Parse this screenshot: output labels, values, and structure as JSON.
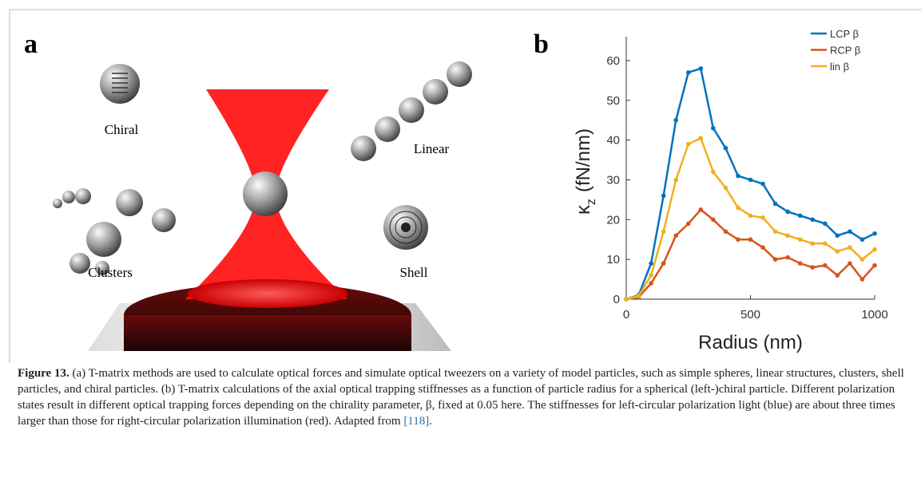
{
  "panels": {
    "a": {
      "label": "a",
      "items": [
        "Chiral",
        "Linear",
        "Clusters",
        "Shell"
      ]
    },
    "b": {
      "label": "b"
    }
  },
  "chart_data": {
    "type": "line",
    "ylabel": {
      "symbol": "κ",
      "subscript": "z",
      "unit": "(fN/nm)"
    },
    "xlabel": "Radius (nm)",
    "x": [
      0,
      50,
      100,
      150,
      200,
      250,
      300,
      350,
      400,
      450,
      500,
      550,
      600,
      650,
      700,
      750,
      800,
      850,
      900,
      950,
      1000
    ],
    "series": [
      {
        "name": "LCP β",
        "color": "#0072bd",
        "values": [
          0,
          1,
          9,
          26,
          45,
          57,
          58,
          43,
          38,
          31,
          30,
          29,
          24,
          22,
          21,
          20,
          19,
          16,
          17,
          15,
          16.5
        ]
      },
      {
        "name": "RCP β",
        "color": "#d95319",
        "values": [
          0,
          0.5,
          4,
          9,
          16,
          19,
          22.5,
          20,
          17,
          15,
          15,
          13,
          10,
          10.5,
          9,
          8,
          8.5,
          6,
          9,
          5,
          8.5
        ]
      },
      {
        "name": "lin β",
        "color": "#edb120",
        "values": [
          0,
          0.8,
          6,
          17,
          30,
          39,
          40.5,
          32,
          28,
          23,
          21,
          20.5,
          17,
          16,
          15,
          14,
          14,
          12,
          13,
          10,
          12.5
        ]
      }
    ],
    "xlim": [
      0,
      1000
    ],
    "xticks": [
      0,
      500,
      1000
    ],
    "ylim": [
      0,
      66
    ],
    "yticks": [
      0,
      10,
      20,
      30,
      40,
      50,
      60
    ],
    "legend": "top-right"
  },
  "caption": {
    "label": "Figure 13.",
    "text": " (a) T-matrix methods are used to calculate optical forces and simulate optical tweezers on a variety of model particles, such as simple spheres, linear structures, clusters, shell particles, and chiral particles. (b) T-matrix calculations of the axial optical trapping stiffnesses as a function of particle radius for a spherical (left-)chiral particle. Different polarization states result in different optical trapping forces depending on the chirality parameter, β, fixed at 0.05 here. The stiffnesses for left-circular polarization light (blue) are about three times larger than those for right-circular polarization illumination (red). Adapted from ",
    "ref": "[118]",
    "end": "."
  }
}
